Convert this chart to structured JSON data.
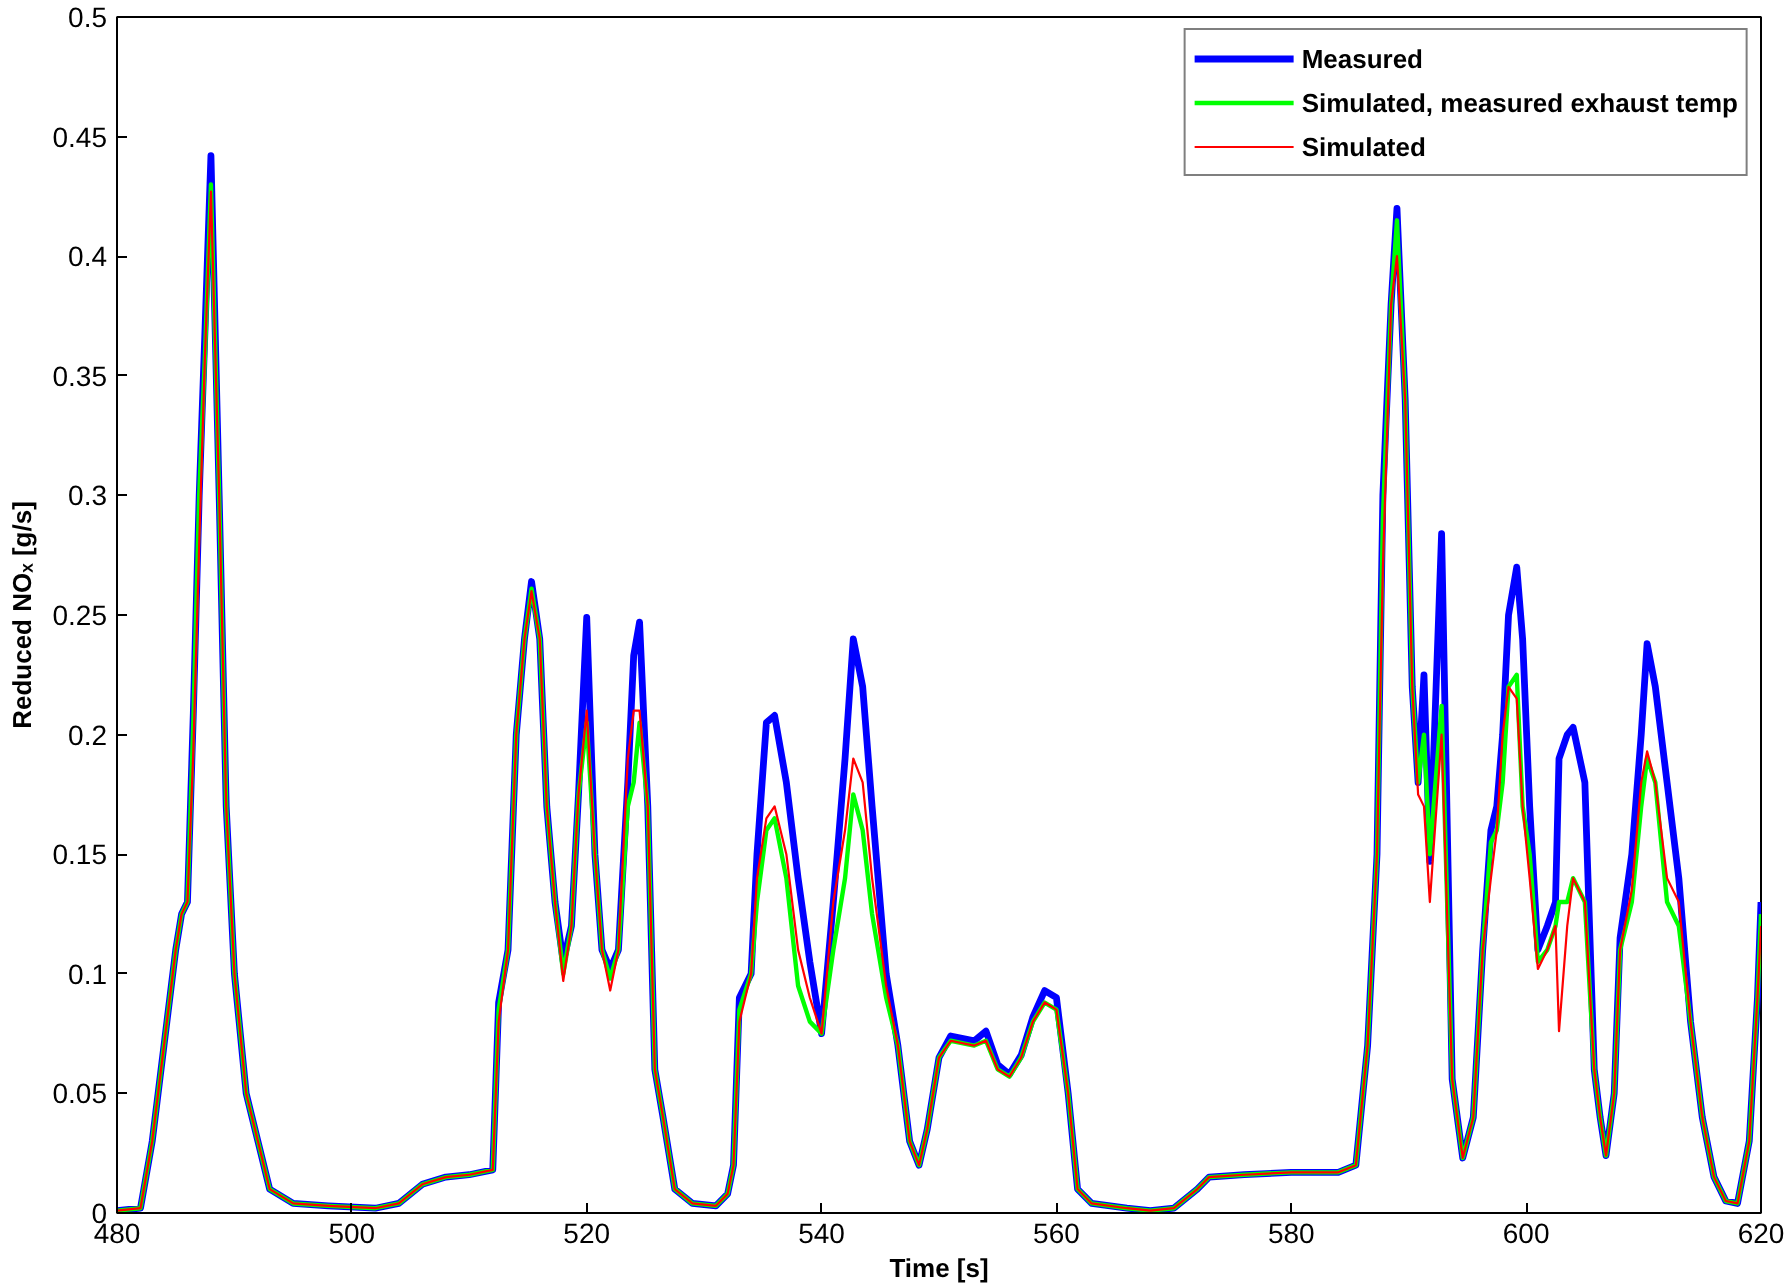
{
  "chart_data": {
    "type": "line",
    "xlabel": "Time [s]",
    "ylabel": "Reduced NOₓ [g/s]",
    "xlim": [
      480,
      620
    ],
    "xticks": [
      480,
      500,
      520,
      540,
      560,
      580,
      600,
      620
    ],
    "ylim": [
      0,
      0.5
    ],
    "yticks": [
      0,
      0.05,
      0.1,
      0.15,
      0.2,
      0.25,
      0.3,
      0.35,
      0.4,
      0.45,
      0.5
    ],
    "grid": false,
    "legend": "top right",
    "marker": "none",
    "line_style": "solid",
    "x": [
      480,
      482,
      483,
      484,
      485,
      485.5,
      486,
      486.5,
      487,
      487.5,
      488,
      488.7,
      489.3,
      490,
      491,
      492,
      493,
      495,
      498,
      502,
      504,
      506,
      508,
      510,
      512,
      512.5,
      513.3,
      514,
      514.7,
      515.3,
      516,
      516.6,
      517.3,
      518,
      518.7,
      519.3,
      520,
      520.7,
      521.3,
      522,
      522.7,
      523.5,
      524,
      524.5,
      525.2,
      525.8,
      526.5,
      527.5,
      529,
      531,
      532,
      532.5,
      533,
      534,
      534.5,
      535.3,
      536,
      537,
      538,
      539,
      540,
      541,
      542,
      542.7,
      543.5,
      544.3,
      545.5,
      546.5,
      547.5,
      548.3,
      549,
      550,
      551,
      553,
      554,
      555,
      556,
      557,
      558,
      559,
      560,
      561,
      561.8,
      563,
      566,
      568,
      570,
      572,
      573,
      576,
      580,
      584,
      585.5,
      586.5,
      587.3,
      587.8,
      588.5,
      589,
      589.7,
      590.3,
      590.8,
      591.3,
      591.8,
      592.8,
      593.7,
      594.6,
      595.5,
      596.3,
      597,
      597.5,
      598,
      598.5,
      599.2,
      599.7,
      600.3,
      601,
      601.8,
      602.5,
      602.8,
      603.5,
      604,
      605,
      605.8,
      606.3,
      606.8,
      607.5,
      608,
      609,
      609.8,
      610.3,
      611,
      612,
      613,
      614,
      615,
      616,
      617,
      618,
      619,
      619.7,
      620
    ],
    "series": [
      {
        "name": "Measured",
        "color": "#0000ff",
        "values": [
          0.001,
          0.002,
          0.03,
          0.07,
          0.11,
          0.125,
          0.13,
          0.209,
          0.3,
          0.37,
          0.442,
          0.3,
          0.17,
          0.1,
          0.05,
          0.03,
          0.01,
          0.004,
          0.003,
          0.002,
          0.004,
          0.012,
          0.015,
          0.016,
          0.018,
          0.088,
          0.11,
          0.2,
          0.24,
          0.264,
          0.24,
          0.17,
          0.13,
          0.105,
          0.12,
          0.175,
          0.249,
          0.15,
          0.11,
          0.102,
          0.11,
          0.18,
          0.233,
          0.247,
          0.17,
          0.06,
          0.04,
          0.01,
          0.004,
          0.003,
          0.008,
          0.02,
          0.09,
          0.1,
          0.15,
          0.205,
          0.208,
          0.18,
          0.14,
          0.105,
          0.075,
          0.13,
          0.19,
          0.24,
          0.22,
          0.17,
          0.1,
          0.07,
          0.03,
          0.02,
          0.035,
          0.065,
          0.074,
          0.072,
          0.076,
          0.062,
          0.058,
          0.066,
          0.082,
          0.093,
          0.09,
          0.05,
          0.01,
          0.004,
          0.002,
          0.001,
          0.002,
          0.01,
          0.015,
          0.016,
          0.017,
          0.017,
          0.02,
          0.07,
          0.15,
          0.3,
          0.38,
          0.42,
          0.34,
          0.22,
          0.18,
          0.225,
          0.147,
          0.284,
          0.056,
          0.023,
          0.04,
          0.11,
          0.16,
          0.17,
          0.2,
          0.25,
          0.27,
          0.24,
          0.17,
          0.11,
          0.12,
          0.13,
          0.19,
          0.2,
          0.203,
          0.18,
          0.06,
          0.04,
          0.024,
          0.05,
          0.115,
          0.15,
          0.2,
          0.238,
          0.22,
          0.18,
          0.14,
          0.08,
          0.04,
          0.015,
          0.005,
          0.004,
          0.03,
          0.09,
          0.13
        ]
      },
      {
        "name": "Simulated, measured exhaust temp",
        "color": "#00ff00",
        "values": [
          0.001,
          0.002,
          0.03,
          0.07,
          0.11,
          0.125,
          0.13,
          0.205,
          0.3,
          0.36,
          0.43,
          0.3,
          0.17,
          0.1,
          0.05,
          0.03,
          0.01,
          0.004,
          0.003,
          0.002,
          0.004,
          0.012,
          0.015,
          0.016,
          0.018,
          0.085,
          0.11,
          0.2,
          0.24,
          0.261,
          0.24,
          0.17,
          0.13,
          0.1,
          0.12,
          0.175,
          0.205,
          0.15,
          0.11,
          0.098,
          0.11,
          0.17,
          0.18,
          0.205,
          0.17,
          0.06,
          0.04,
          0.01,
          0.004,
          0.003,
          0.008,
          0.02,
          0.085,
          0.1,
          0.13,
          0.16,
          0.165,
          0.14,
          0.095,
          0.08,
          0.075,
          0.11,
          0.14,
          0.175,
          0.16,
          0.125,
          0.09,
          0.07,
          0.03,
          0.02,
          0.035,
          0.065,
          0.072,
          0.07,
          0.072,
          0.06,
          0.057,
          0.065,
          0.08,
          0.088,
          0.085,
          0.05,
          0.01,
          0.004,
          0.002,
          0.001,
          0.002,
          0.01,
          0.015,
          0.016,
          0.017,
          0.017,
          0.02,
          0.07,
          0.15,
          0.29,
          0.38,
          0.415,
          0.34,
          0.22,
          0.18,
          0.2,
          0.15,
          0.212,
          0.056,
          0.023,
          0.04,
          0.11,
          0.155,
          0.16,
          0.18,
          0.22,
          0.225,
          0.17,
          0.15,
          0.105,
          0.11,
          0.12,
          0.13,
          0.13,
          0.14,
          0.13,
          0.06,
          0.04,
          0.024,
          0.05,
          0.11,
          0.13,
          0.17,
          0.19,
          0.18,
          0.13,
          0.12,
          0.08,
          0.04,
          0.015,
          0.005,
          0.004,
          0.03,
          0.09,
          0.125
        ]
      },
      {
        "name": "Simulated",
        "color": "#ff0000",
        "values": [
          0.001,
          0.002,
          0.03,
          0.07,
          0.11,
          0.125,
          0.13,
          0.193,
          0.28,
          0.36,
          0.427,
          0.3,
          0.17,
          0.1,
          0.05,
          0.03,
          0.01,
          0.004,
          0.003,
          0.002,
          0.004,
          0.012,
          0.015,
          0.016,
          0.018,
          0.08,
          0.11,
          0.2,
          0.24,
          0.26,
          0.24,
          0.17,
          0.13,
          0.097,
          0.12,
          0.175,
          0.21,
          0.15,
          0.11,
          0.093,
          0.11,
          0.19,
          0.21,
          0.21,
          0.17,
          0.06,
          0.04,
          0.01,
          0.004,
          0.003,
          0.008,
          0.02,
          0.08,
          0.1,
          0.14,
          0.165,
          0.17,
          0.15,
          0.11,
          0.09,
          0.075,
          0.13,
          0.16,
          0.19,
          0.18,
          0.14,
          0.095,
          0.07,
          0.03,
          0.02,
          0.035,
          0.065,
          0.072,
          0.07,
          0.072,
          0.06,
          0.057,
          0.065,
          0.08,
          0.088,
          0.085,
          0.05,
          0.01,
          0.004,
          0.002,
          0.001,
          0.002,
          0.01,
          0.015,
          0.016,
          0.017,
          0.017,
          0.02,
          0.07,
          0.15,
          0.27,
          0.38,
          0.4,
          0.34,
          0.22,
          0.175,
          0.17,
          0.13,
          0.2,
          0.056,
          0.023,
          0.04,
          0.11,
          0.14,
          0.16,
          0.2,
          0.22,
          0.215,
          0.17,
          0.14,
          0.102,
          0.11,
          0.12,
          0.076,
          0.12,
          0.14,
          0.13,
          0.06,
          0.04,
          0.024,
          0.05,
          0.11,
          0.135,
          0.18,
          0.193,
          0.18,
          0.14,
          0.13,
          0.08,
          0.04,
          0.015,
          0.005,
          0.004,
          0.03,
          0.09,
          0.12
        ]
      }
    ]
  }
}
